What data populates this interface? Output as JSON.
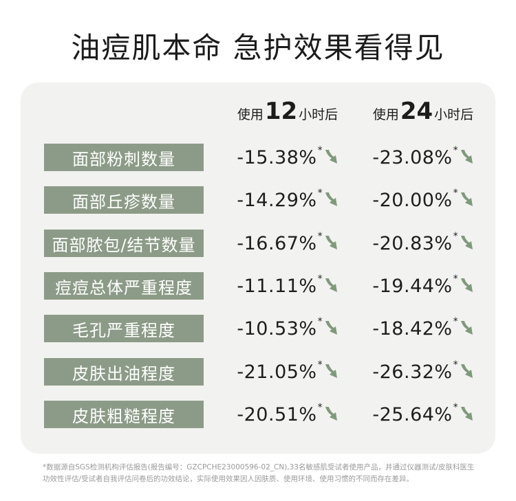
{
  "title": "油痘肌本命 急护效果看得见",
  "columns": [
    {
      "prefix": "使用",
      "number": "12",
      "suffix": "小时后"
    },
    {
      "prefix": "使用",
      "number": "24",
      "suffix": "小时后"
    }
  ],
  "rows": [
    {
      "label": "面部粉刺数量",
      "v12": "-15.38%",
      "v24": "-23.08%"
    },
    {
      "label": "面部丘疹数量",
      "v12": "-14.29%",
      "v24": "-20.00%"
    },
    {
      "label": "面部脓包/结节数量",
      "v12": "-16.67%",
      "v24": "-20.83%"
    },
    {
      "label": "痘痘总体严重程度",
      "v12": "-11.11%",
      "v24": "-19.44%"
    },
    {
      "label": "毛孔严重程度",
      "v12": "-10.53%",
      "v24": "-18.42%"
    },
    {
      "label": "皮肤出油程度",
      "v12": "-21.05%",
      "v24": "-26.32%"
    },
    {
      "label": "皮肤粗糙程度",
      "v12": "-20.51%",
      "v24": "-25.64%"
    }
  ],
  "star": "*",
  "icons": {
    "decrease": "down-arrow-icon"
  },
  "colors": {
    "label_bg": "#8c9b87",
    "arrow": "#7f9a7b",
    "panel": "#f2f2f0"
  },
  "footnote": "*数据源自SGS检测机构评估报告(报告编号：GZCPCHE23000596-02_CN),33名敏感肌受试者使用产品，并通过仪器测试/皮肤科医生功效性评估/受试者自我评估问卷后的功效结论，实际使用效果因人因肤质、使用环境、使用习惯的不同而存在差异。"
}
